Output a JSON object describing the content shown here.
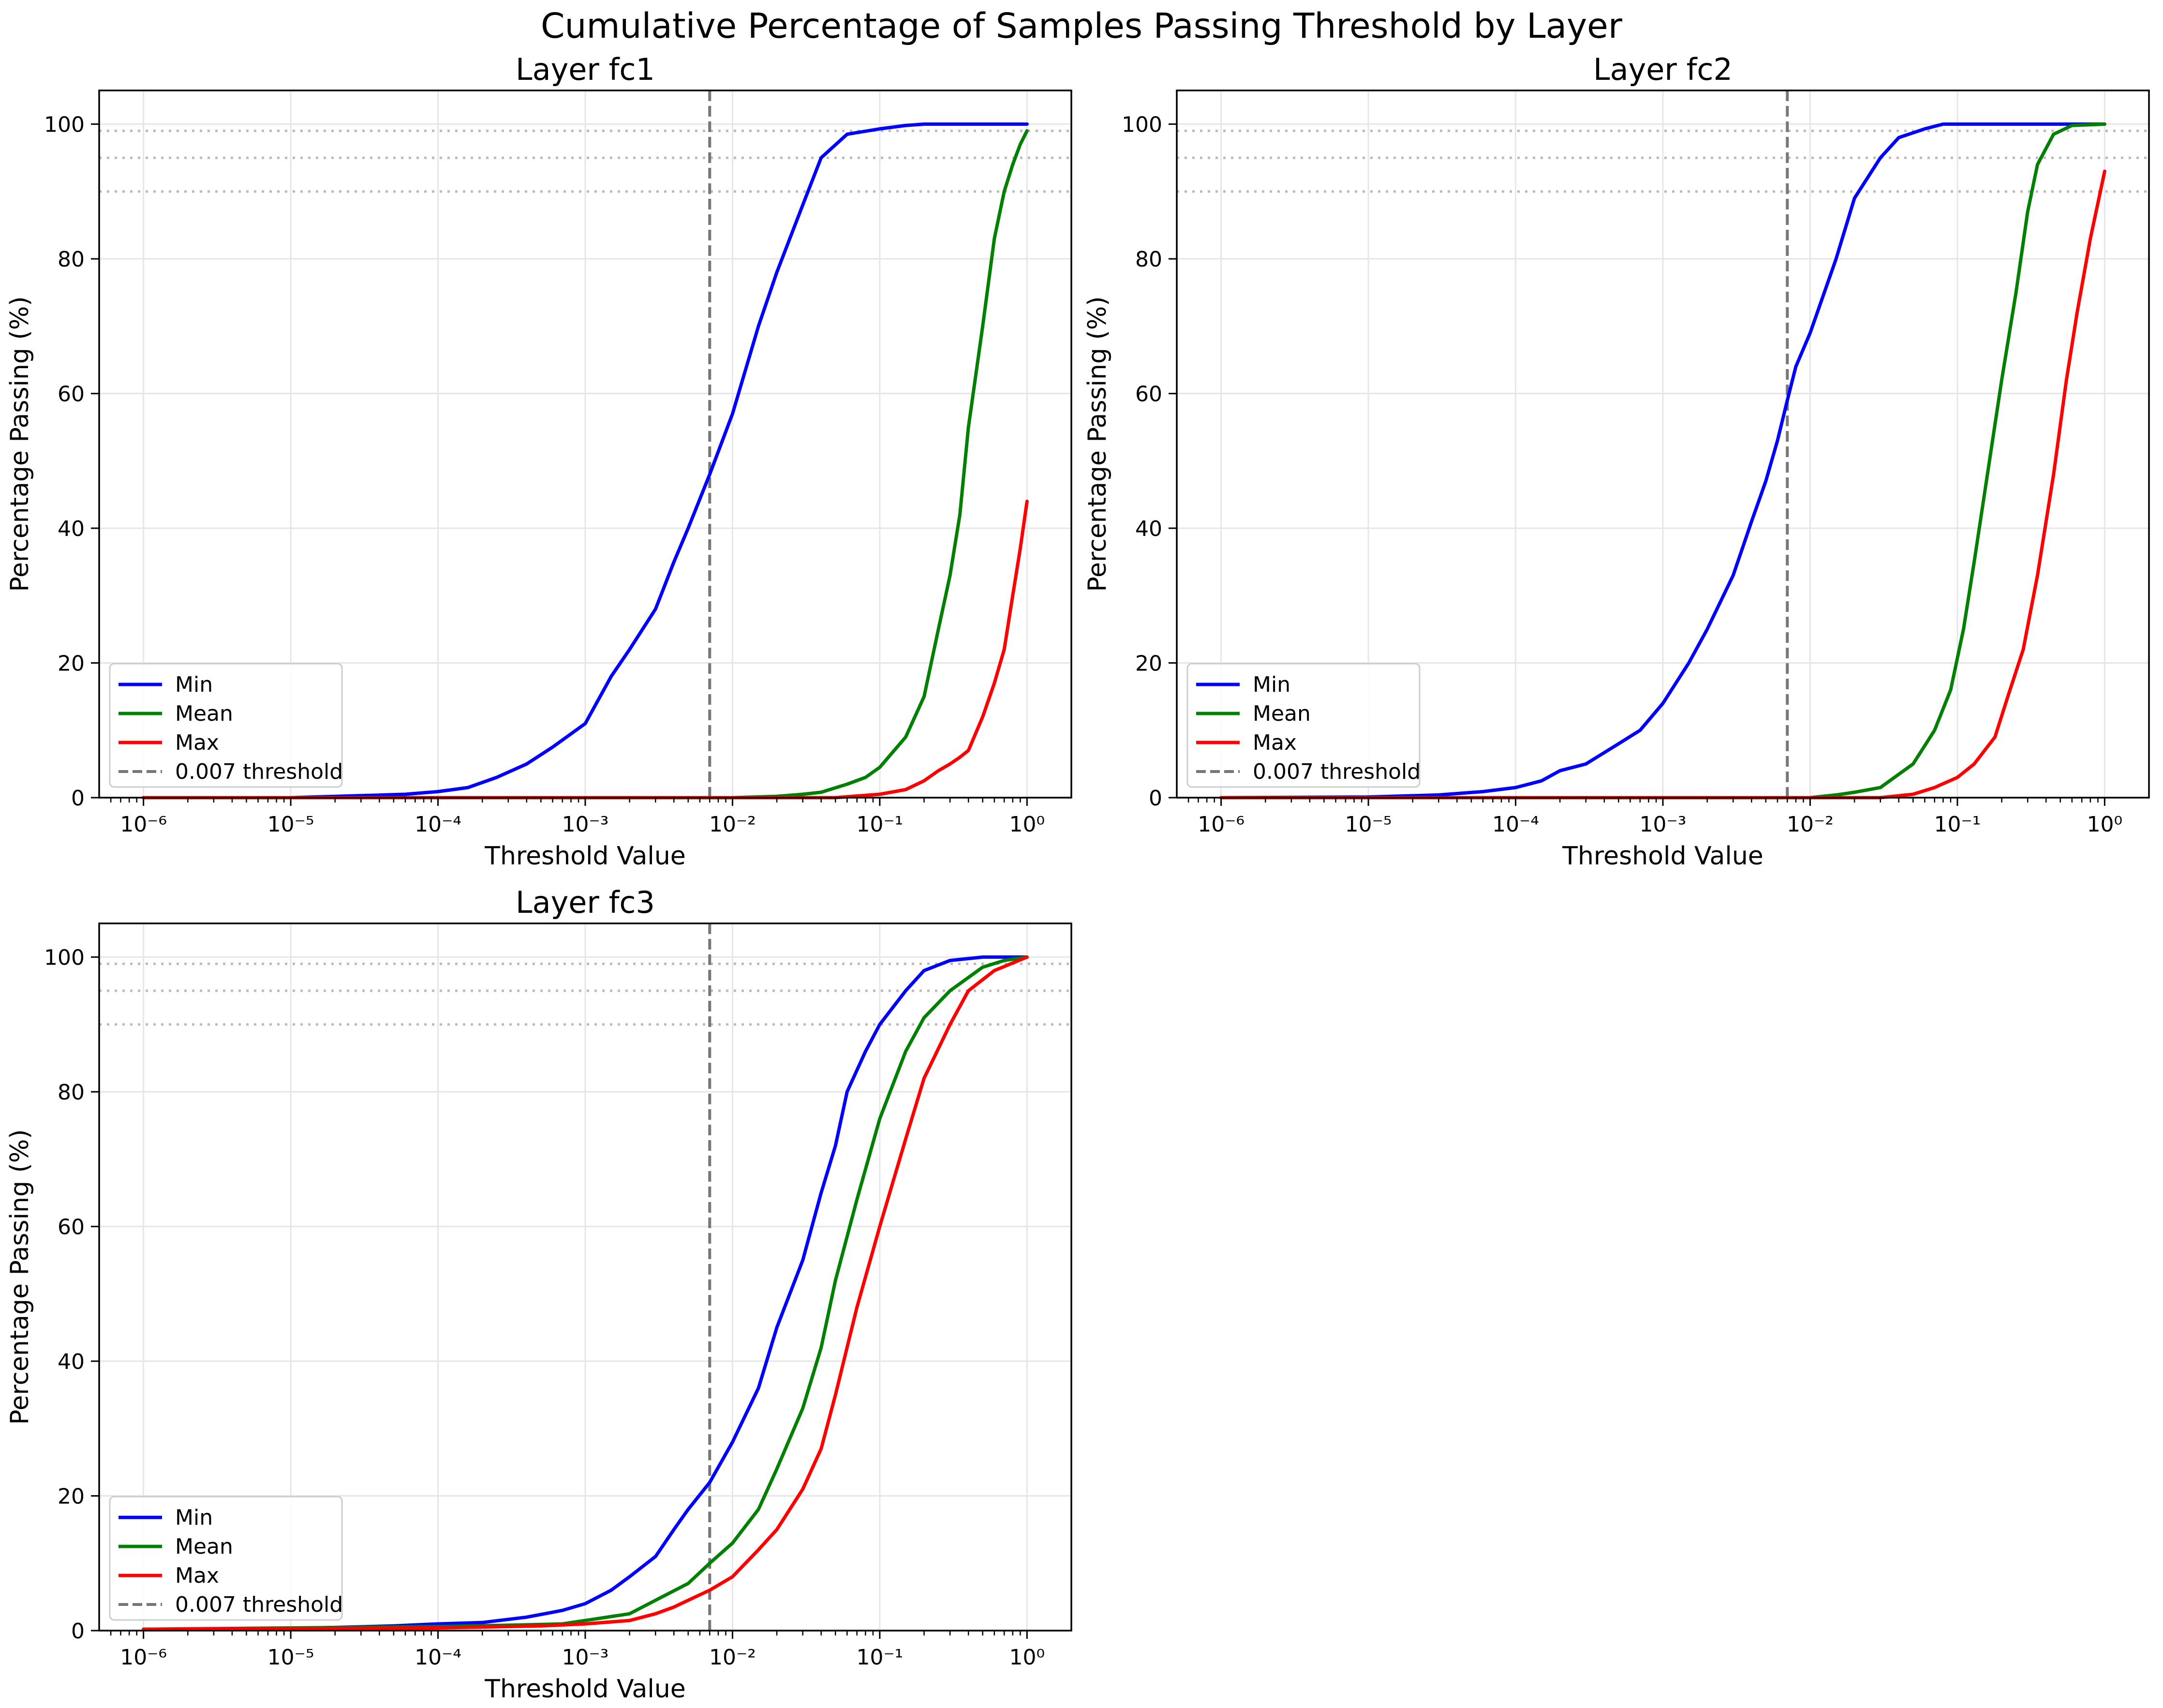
{
  "figure": {
    "title": "Cumulative Percentage of Samples Passing Threshold by Layer"
  },
  "colors": {
    "min": "#0000ff",
    "mean": "#008000",
    "max": "#ff0000",
    "threshold": "#777777",
    "ref": "#bbbbbb",
    "grid": "#e6e6e6"
  },
  "chart_data": [
    {
      "type": "line",
      "title": "Layer fc1",
      "xlabel": "Threshold Value",
      "ylabel": "Percentage Passing (%)",
      "xscale": "log",
      "xlim": [
        5e-07,
        2
      ],
      "ylim": [
        0,
        105
      ],
      "xticks": [
        "10^-6",
        "10^-5",
        "10^-4",
        "10^-3",
        "10^-2",
        "10^-1",
        "10^0"
      ],
      "yticks": [
        0,
        20,
        40,
        60,
        80,
        100
      ],
      "grid": true,
      "legend": {
        "position": "lower-left",
        "entries": [
          "Min",
          "Mean",
          "Max",
          "0.007 threshold"
        ]
      },
      "vline": {
        "x": 0.007,
        "label": "0.007 threshold"
      },
      "hlines": [
        90,
        95,
        99
      ],
      "series": [
        {
          "name": "Min",
          "points": [
            [
              1e-06,
              0
            ],
            [
              1e-05,
              0
            ],
            [
              3e-05,
              0.3
            ],
            [
              6e-05,
              0.5
            ],
            [
              0.0001,
              0.9
            ],
            [
              0.00016,
              1.5
            ],
            [
              0.00025,
              3
            ],
            [
              0.0004,
              5
            ],
            [
              0.0006,
              7.5
            ],
            [
              0.001,
              11
            ],
            [
              0.0015,
              18
            ],
            [
              0.002,
              22
            ],
            [
              0.003,
              28
            ],
            [
              0.004,
              35
            ],
            [
              0.005,
              40
            ],
            [
              0.007,
              48
            ],
            [
              0.01,
              57
            ],
            [
              0.015,
              70
            ],
            [
              0.02,
              78
            ],
            [
              0.03,
              88
            ],
            [
              0.04,
              95
            ],
            [
              0.06,
              98.5
            ],
            [
              0.1,
              99.3
            ],
            [
              0.15,
              99.8
            ],
            [
              0.2,
              100
            ],
            [
              1,
              100
            ]
          ]
        },
        {
          "name": "Mean",
          "points": [
            [
              1e-06,
              0
            ],
            [
              0.01,
              0
            ],
            [
              0.02,
              0.2
            ],
            [
              0.03,
              0.5
            ],
            [
              0.04,
              0.8
            ],
            [
              0.06,
              2
            ],
            [
              0.08,
              3
            ],
            [
              0.1,
              4.5
            ],
            [
              0.15,
              9
            ],
            [
              0.2,
              15
            ],
            [
              0.25,
              25
            ],
            [
              0.3,
              33
            ],
            [
              0.35,
              42
            ],
            [
              0.4,
              55
            ],
            [
              0.5,
              70
            ],
            [
              0.6,
              83
            ],
            [
              0.7,
              90
            ],
            [
              0.8,
              94
            ],
            [
              0.9,
              97
            ],
            [
              1,
              99
            ]
          ]
        },
        {
          "name": "Max",
          "points": [
            [
              1e-06,
              0
            ],
            [
              0.05,
              0
            ],
            [
              0.1,
              0.5
            ],
            [
              0.15,
              1.2
            ],
            [
              0.2,
              2.5
            ],
            [
              0.25,
              4
            ],
            [
              0.3,
              5
            ],
            [
              0.35,
              6
            ],
            [
              0.4,
              7
            ],
            [
              0.5,
              12
            ],
            [
              0.6,
              17
            ],
            [
              0.7,
              22
            ],
            [
              0.8,
              30
            ],
            [
              0.9,
              37
            ],
            [
              1,
              44
            ]
          ]
        }
      ]
    },
    {
      "type": "line",
      "title": "Layer fc2",
      "xlabel": "Threshold Value",
      "ylabel": "Percentage Passing (%)",
      "xscale": "log",
      "xlim": [
        5e-07,
        2
      ],
      "ylim": [
        0,
        105
      ],
      "xticks": [
        "10^-6",
        "10^-5",
        "10^-4",
        "10^-3",
        "10^-2",
        "10^-1",
        "10^0"
      ],
      "yticks": [
        0,
        20,
        40,
        60,
        80,
        100
      ],
      "grid": true,
      "legend": {
        "position": "lower-left",
        "entries": [
          "Min",
          "Mean",
          "Max",
          "0.007 threshold"
        ]
      },
      "vline": {
        "x": 0.007,
        "label": "0.007 threshold"
      },
      "hlines": [
        90,
        95,
        99
      ],
      "series": [
        {
          "name": "Min",
          "points": [
            [
              1e-06,
              0
            ],
            [
              1e-05,
              0.1
            ],
            [
              3e-05,
              0.4
            ],
            [
              6e-05,
              0.9
            ],
            [
              0.0001,
              1.5
            ],
            [
              0.00015,
              2.5
            ],
            [
              0.0002,
              4
            ],
            [
              0.0003,
              5
            ],
            [
              0.0005,
              8
            ],
            [
              0.0007,
              10
            ],
            [
              0.001,
              14
            ],
            [
              0.0015,
              20
            ],
            [
              0.002,
              25
            ],
            [
              0.003,
              33
            ],
            [
              0.004,
              41
            ],
            [
              0.005,
              47
            ],
            [
              0.006,
              53
            ],
            [
              0.007,
              59
            ],
            [
              0.008,
              64
            ],
            [
              0.01,
              69
            ],
            [
              0.015,
              80
            ],
            [
              0.02,
              89
            ],
            [
              0.03,
              95
            ],
            [
              0.04,
              98
            ],
            [
              0.06,
              99.3
            ],
            [
              0.08,
              100
            ],
            [
              1,
              100
            ]
          ]
        },
        {
          "name": "Mean",
          "points": [
            [
              1e-06,
              0
            ],
            [
              0.01,
              0
            ],
            [
              0.015,
              0.4
            ],
            [
              0.02,
              0.8
            ],
            [
              0.03,
              1.5
            ],
            [
              0.05,
              5
            ],
            [
              0.07,
              10
            ],
            [
              0.09,
              16
            ],
            [
              0.11,
              25
            ],
            [
              0.13,
              35
            ],
            [
              0.16,
              48
            ],
            [
              0.2,
              62
            ],
            [
              0.25,
              75
            ],
            [
              0.3,
              87
            ],
            [
              0.35,
              94
            ],
            [
              0.45,
              98.5
            ],
            [
              0.6,
              99.8
            ],
            [
              1,
              100
            ]
          ]
        },
        {
          "name": "Max",
          "points": [
            [
              1e-06,
              0
            ],
            [
              0.03,
              0
            ],
            [
              0.05,
              0.5
            ],
            [
              0.07,
              1.5
            ],
            [
              0.1,
              3
            ],
            [
              0.13,
              5
            ],
            [
              0.18,
              9
            ],
            [
              0.22,
              15
            ],
            [
              0.28,
              22
            ],
            [
              0.35,
              33
            ],
            [
              0.45,
              48
            ],
            [
              0.55,
              62
            ],
            [
              0.65,
              72
            ],
            [
              0.8,
              83
            ],
            [
              1,
              93
            ]
          ]
        }
      ]
    },
    {
      "type": "line",
      "title": "Layer fc3",
      "xlabel": "Threshold Value",
      "ylabel": "Percentage Passing (%)",
      "xscale": "log",
      "xlim": [
        5e-07,
        2
      ],
      "ylim": [
        0,
        105
      ],
      "xticks": [
        "10^-6",
        "10^-5",
        "10^-4",
        "10^-3",
        "10^-2",
        "10^-1",
        "10^0"
      ],
      "yticks": [
        0,
        20,
        40,
        60,
        80,
        100
      ],
      "grid": true,
      "legend": {
        "position": "lower-left",
        "entries": [
          "Min",
          "Mean",
          "Max",
          "0.007 threshold"
        ]
      },
      "vline": {
        "x": 0.007,
        "label": "0.007 threshold"
      },
      "hlines": [
        90,
        95,
        99
      ],
      "series": [
        {
          "name": "Min",
          "points": [
            [
              1e-06,
              0.2
            ],
            [
              1e-05,
              0.3
            ],
            [
              5e-05,
              0.7
            ],
            [
              0.0001,
              1
            ],
            [
              0.0002,
              1.2
            ],
            [
              0.0004,
              2
            ],
            [
              0.0007,
              3
            ],
            [
              0.001,
              4
            ],
            [
              0.0015,
              6
            ],
            [
              0.002,
              8
            ],
            [
              0.003,
              11
            ],
            [
              0.004,
              15
            ],
            [
              0.005,
              18
            ],
            [
              0.007,
              22
            ],
            [
              0.01,
              28
            ],
            [
              0.015,
              36
            ],
            [
              0.02,
              45
            ],
            [
              0.03,
              55
            ],
            [
              0.04,
              65
            ],
            [
              0.05,
              72
            ],
            [
              0.06,
              80
            ],
            [
              0.08,
              86
            ],
            [
              0.1,
              90
            ],
            [
              0.15,
              95
            ],
            [
              0.2,
              98
            ],
            [
              0.3,
              99.5
            ],
            [
              0.5,
              100
            ],
            [
              1,
              100
            ]
          ]
        },
        {
          "name": "Mean",
          "points": [
            [
              1e-06,
              0.2
            ],
            [
              0.0001,
              0.6
            ],
            [
              0.0003,
              0.8
            ],
            [
              0.0007,
              1
            ],
            [
              0.001,
              1.5
            ],
            [
              0.002,
              2.5
            ],
            [
              0.003,
              4.5
            ],
            [
              0.005,
              7
            ],
            [
              0.007,
              10
            ],
            [
              0.01,
              13
            ],
            [
              0.015,
              18
            ],
            [
              0.02,
              24
            ],
            [
              0.03,
              33
            ],
            [
              0.04,
              42
            ],
            [
              0.05,
              52
            ],
            [
              0.07,
              64
            ],
            [
              0.1,
              76
            ],
            [
              0.15,
              86
            ],
            [
              0.2,
              91
            ],
            [
              0.3,
              95
            ],
            [
              0.5,
              98.5
            ],
            [
              0.7,
              99.5
            ],
            [
              1,
              100
            ]
          ]
        },
        {
          "name": "Max",
          "points": [
            [
              1e-06,
              0.2
            ],
            [
              0.0001,
              0.4
            ],
            [
              0.0005,
              0.7
            ],
            [
              0.001,
              1
            ],
            [
              0.002,
              1.5
            ],
            [
              0.003,
              2.5
            ],
            [
              0.004,
              3.5
            ],
            [
              0.005,
              4.5
            ],
            [
              0.007,
              6
            ],
            [
              0.01,
              8
            ],
            [
              0.015,
              12
            ],
            [
              0.02,
              15
            ],
            [
              0.03,
              21
            ],
            [
              0.04,
              27
            ],
            [
              0.05,
              35
            ],
            [
              0.07,
              48
            ],
            [
              0.1,
              60
            ],
            [
              0.15,
              73
            ],
            [
              0.2,
              82
            ],
            [
              0.3,
              90
            ],
            [
              0.4,
              95
            ],
            [
              0.6,
              98
            ],
            [
              1,
              100
            ]
          ]
        }
      ]
    }
  ]
}
